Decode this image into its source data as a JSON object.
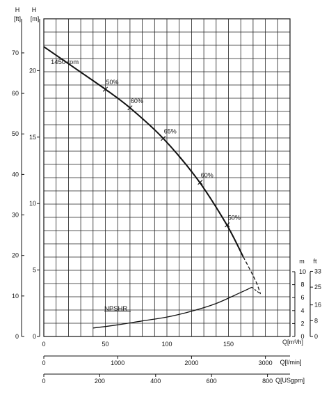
{
  "chart_data": {
    "type": "line",
    "axes": {
      "h_ft": {
        "header": "H",
        "unit": "[ft]",
        "ticks": [
          0,
          10,
          20,
          30,
          40,
          50,
          60,
          70
        ]
      },
      "h_m": {
        "header": "H",
        "unit": "[m]",
        "ticks": [
          0,
          5,
          10,
          15,
          20
        ]
      },
      "q_m3h": {
        "unit": "Q[m³/h]",
        "ticks": [
          0,
          50,
          100,
          150
        ],
        "range": [
          0,
          200
        ]
      },
      "q_lmin": {
        "unit": "Q[l/min]",
        "ticks": [
          0,
          1000,
          2000,
          3000
        ]
      },
      "q_usgpm": {
        "unit": "Q[USgpm]",
        "ticks": [
          0,
          200,
          400,
          600,
          800
        ]
      },
      "npsh_m": {
        "unit": "m",
        "ticks": [
          0,
          2,
          4,
          6,
          8,
          10
        ]
      },
      "npsh_ft": {
        "unit": "ft",
        "ticks": [
          0,
          8,
          16,
          25,
          33
        ]
      }
    },
    "series": [
      {
        "name": "1450 rpm",
        "label": "1450 rpm",
        "unit": "H [m]",
        "style": "solid",
        "x": [
          0,
          25,
          50,
          70,
          97,
          125,
          148,
          162
        ],
        "y": [
          21.8,
          20.2,
          18.6,
          17.2,
          14.9,
          11.8,
          8.5,
          6.0
        ]
      },
      {
        "name": "1450 rpm (extended)",
        "unit": "H [m]",
        "style": "dashed",
        "x": [
          162,
          172,
          176
        ],
        "y": [
          6.0,
          4.2,
          3.2
        ]
      },
      {
        "name": "NPSHR",
        "label": "NPSHR",
        "unit": "NPSH [m]",
        "style": "solid",
        "x": [
          40,
          60,
          80,
          100,
          120,
          140,
          160,
          169
        ],
        "y": [
          1.3,
          1.8,
          2.4,
          3.0,
          3.9,
          5.1,
          6.8,
          7.6
        ]
      }
    ],
    "efficiency_marks": [
      {
        "label": "50%",
        "x": 50,
        "y": 18.6
      },
      {
        "label": "60%",
        "x": 70,
        "y": 17.2
      },
      {
        "label": "65%",
        "x": 97,
        "y": 14.9
      },
      {
        "label": "60%",
        "x": 127,
        "y": 11.6
      },
      {
        "label": "50%",
        "x": 149,
        "y": 8.4
      }
    ],
    "grid": true
  }
}
